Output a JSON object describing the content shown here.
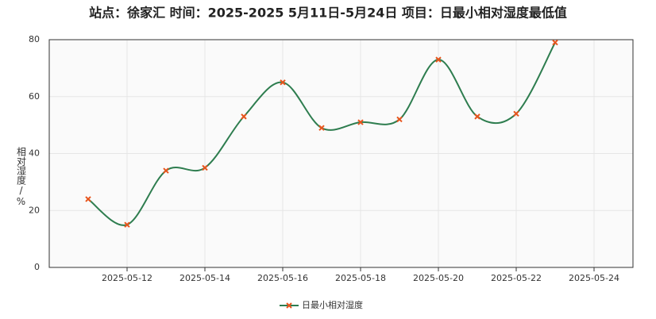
{
  "chart_data": {
    "type": "line",
    "title": "站点：徐家汇 时间：2025-2025  5月11日-5月24日 项目：日最小相对湿度最低值",
    "y_label": "相对湿度/%",
    "x": [
      "2025-05-11",
      "2025-05-12",
      "2025-05-13",
      "2025-05-14",
      "2025-05-15",
      "2025-05-16",
      "2025-05-17",
      "2025-05-18",
      "2025-05-19",
      "2025-05-20",
      "2025-05-21",
      "2025-05-22",
      "2025-05-23"
    ],
    "series": [
      {
        "name": "日最小相对湿度",
        "color": "#2e7d4f",
        "marker_color": "#e8541c",
        "values": [
          24,
          15,
          34,
          35,
          53,
          65,
          49,
          51,
          52,
          73,
          53,
          54,
          79
        ]
      }
    ],
    "xlim": [
      "2025-05-10",
      "2025-05-25"
    ],
    "xticks": [
      "2025-05-12",
      "2025-05-14",
      "2025-05-16",
      "2025-05-18",
      "2025-05-20",
      "2025-05-22",
      "2025-05-24"
    ],
    "ylim": [
      0,
      80
    ],
    "yticks": [
      0,
      20,
      40,
      60,
      80
    ],
    "grid": true,
    "smooth": true,
    "legend": "bottom"
  }
}
